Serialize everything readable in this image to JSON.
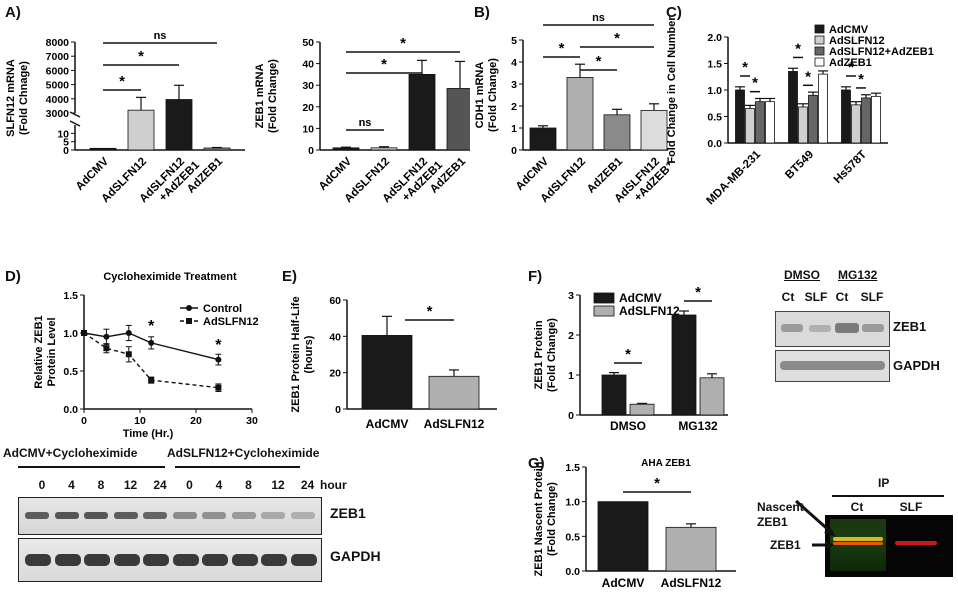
{
  "panels": {
    "A": "A)",
    "B": "B)",
    "C": "C)",
    "D": "D)",
    "E": "E)",
    "F": "F)",
    "G": "G)"
  },
  "chart_data": [
    {
      "id": "A1",
      "type": "bar",
      "ylabel": "SLFN12 mRNA (Fold Chnage)",
      "categories": [
        "AdCMV",
        "AdSLFN12",
        "AdSLFN12 +AdZEB1",
        "AdZEB1"
      ],
      "values": [
        1,
        3200,
        3950,
        1.2
      ],
      "errors": [
        0,
        900,
        1000,
        0.3
      ],
      "colors": [
        "#1a1a1a",
        "#cfcfcf",
        "#1a1a1a",
        "#8a8a8a"
      ],
      "ylim_lower": [
        0,
        15
      ],
      "ylim_upper": [
        3000,
        8000
      ],
      "yticks_lower": [
        "0",
        "5",
        "10"
      ],
      "yticks_upper": [
        "3000",
        "4000",
        "5000",
        "6000",
        "7000",
        "8000"
      ],
      "significance": [
        "*",
        "*",
        "ns"
      ]
    },
    {
      "id": "A2",
      "type": "bar",
      "ylabel": "ZEB1 mRNA (Fold Change)",
      "categories": [
        "AdCMV",
        "AdSLFN12",
        "AdSLFN12 +AdZEB1",
        "AdZEB1"
      ],
      "values": [
        1,
        1,
        35,
        28.5
      ],
      "errors": [
        0.3,
        0.5,
        6.5,
        12.5
      ],
      "colors": [
        "#1a1a1a",
        "#cfcfcf",
        "#1a1a1a",
        "#555555"
      ],
      "ylim": [
        0,
        50
      ],
      "yticks": [
        "0",
        "10",
        "20",
        "30",
        "40",
        "50"
      ],
      "significance": [
        "ns",
        "*",
        "*"
      ]
    },
    {
      "id": "B",
      "type": "bar",
      "ylabel": "CDH1 mRNA (Fold Change)",
      "categories": [
        "AdCMV",
        "AdSLFN12",
        "AdZEB1",
        "AdSLFN12 +AdZEB1"
      ],
      "values": [
        1,
        3.3,
        1.6,
        1.8
      ],
      "errors": [
        0.1,
        0.6,
        0.25,
        0.3
      ],
      "colors": [
        "#1a1a1a",
        "#b0b0b0",
        "#8a8a8a",
        "#dcdcdc"
      ],
      "ylim": [
        0,
        5
      ],
      "yticks": [
        "0",
        "1",
        "2",
        "3",
        "4",
        "5"
      ],
      "significance": [
        "*",
        "*",
        "*",
        "ns"
      ]
    },
    {
      "id": "C",
      "type": "bar",
      "ylabel": "Fold Change in Cell Number",
      "categories": [
        "MDA-MB-231",
        "BT549",
        "Hs578T"
      ],
      "series": [
        {
          "name": "AdCMV",
          "values": [
            1.0,
            1.35,
            1.0
          ],
          "color": "#1a1a1a"
        },
        {
          "name": "AdSLFN12",
          "values": [
            0.65,
            0.68,
            0.72
          ],
          "color": "#cfcfcf"
        },
        {
          "name": "AdSLFN12+AdZEB1",
          "values": [
            0.78,
            0.9,
            0.85
          ],
          "color": "#666666"
        },
        {
          "name": "AdZEB1",
          "values": [
            0.78,
            1.3,
            0.88
          ],
          "color": "#ffffff"
        }
      ],
      "ylim": [
        0,
        2.0
      ],
      "yticks": [
        "0.0",
        "0.5",
        "1.0",
        "1.5",
        "2.0"
      ],
      "legend": "top-right"
    },
    {
      "id": "D",
      "type": "line",
      "title": "Cycloheximide Treatment",
      "xlabel": "Time (Hr.)",
      "ylabel": "Relative ZEB1 Protein Level",
      "x": [
        0,
        4,
        8,
        12,
        24
      ],
      "series": [
        {
          "name": "Control",
          "values": [
            1.0,
            0.95,
            1.0,
            0.87,
            0.65
          ],
          "errors": [
            0,
            0.1,
            0.1,
            0.08,
            0.07
          ]
        },
        {
          "name": "AdSLFN12",
          "values": [
            1.0,
            0.8,
            0.72,
            0.38,
            0.28
          ],
          "errors": [
            0,
            0.06,
            0.1,
            0.04,
            0.05
          ]
        }
      ],
      "xlim": [
        0,
        30
      ],
      "ylim": [
        0,
        1.5
      ],
      "xticks": [
        "0",
        "10",
        "20",
        "30"
      ],
      "yticks": [
        "0.0",
        "0.5",
        "1.0",
        "1.5"
      ],
      "legend": "top-right",
      "significance": [
        "*",
        "*"
      ]
    },
    {
      "id": "E",
      "type": "bar",
      "ylabel": "ZEB1 Protein Half-Life (hours)",
      "categories": [
        "AdCMV",
        "AdSLFN12"
      ],
      "values": [
        40.5,
        18
      ],
      "errors": [
        10.5,
        3.5
      ],
      "colors": [
        "#1a1a1a",
        "#b0b0b0"
      ],
      "ylim": [
        0,
        60
      ],
      "yticks": [
        "0",
        "20",
        "40",
        "60"
      ],
      "significance": [
        "*"
      ]
    },
    {
      "id": "F",
      "type": "bar",
      "ylabel": "ZEB1 Protein (Fold Change)",
      "categories": [
        "DMSO",
        "MG132"
      ],
      "series": [
        {
          "name": "AdCMV",
          "values": [
            1.0,
            2.5
          ],
          "errors": [
            0.06,
            0.1
          ],
          "color": "#1a1a1a"
        },
        {
          "name": "AdSLFN12",
          "values": [
            0.27,
            0.93
          ],
          "errors": [
            0.02,
            0.1
          ],
          "color": "#b0b0b0"
        }
      ],
      "ylim": [
        0,
        3
      ],
      "yticks": [
        "0",
        "1",
        "2",
        "3"
      ],
      "legend": "top-left",
      "significance": [
        "*",
        "*"
      ]
    },
    {
      "id": "G",
      "type": "bar",
      "ylabel": "ZEB1 Nascent Protein (Fold Change)",
      "title": "AHA ZEB1",
      "categories": [
        "AdCMV",
        "AdSLFN12"
      ],
      "values": [
        1.0,
        0.63
      ],
      "errors": [
        0,
        0.05
      ],
      "colors": [
        "#1a1a1a",
        "#b0b0b0"
      ],
      "ylim": [
        0,
        1.5
      ],
      "yticks": [
        "0.0",
        "0.5",
        "1.0",
        "1.5"
      ],
      "significance": [
        "*"
      ]
    }
  ],
  "blots": {
    "D": {
      "group1": "AdCMV+Cycloheximide",
      "group2": "AdSLFN12+Cycloheximide",
      "lanes": [
        "0",
        "4",
        "8",
        "12",
        "24",
        "0",
        "4",
        "8",
        "12",
        "24"
      ],
      "unit": "hour",
      "band_intensity": [
        0.85,
        0.9,
        0.9,
        0.85,
        0.8,
        0.55,
        0.5,
        0.45,
        0.35,
        0.3
      ],
      "rows": [
        "ZEB1",
        "GAPDH"
      ]
    },
    "F": {
      "group1": "DMSO",
      "group2": "MG132",
      "lanes": [
        "Ct",
        "SLF",
        "Ct",
        "SLF"
      ],
      "rows": [
        "ZEB1",
        "GAPDH"
      ]
    },
    "G": {
      "header": "IP",
      "lanes": [
        "Ct",
        "SLF"
      ],
      "nascent_label": "Nascent ZEB1",
      "band_label": "ZEB1"
    }
  }
}
